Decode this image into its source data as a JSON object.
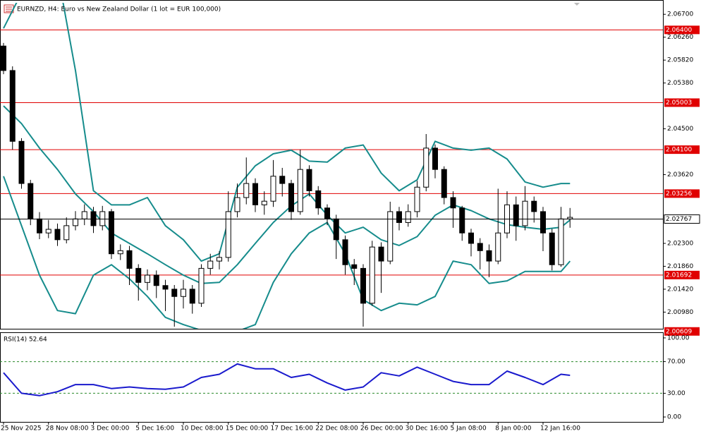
{
  "chart_data": [
    {
      "type": "candlestick",
      "title": "EURNZD, H4:  Euro vs New Zealand Dollar (1 lot = EUR 100,000)",
      "categories": [
        "25 Nov 2025",
        null,
        null,
        null,
        null,
        "28 Nov 08:00",
        null,
        null,
        null,
        null,
        "3 Dec 00:00",
        null,
        null,
        null,
        null,
        "5 Dec 16:00",
        null,
        null,
        null,
        null,
        "10 Dec 08:00",
        null,
        null,
        null,
        null,
        "15 Dec 00:00",
        null,
        null,
        null,
        null,
        "17 Dec 16:00",
        null,
        null,
        null,
        null,
        "22 Dec 08:00",
        null,
        null,
        null,
        null,
        "26 Dec 00:00",
        null,
        null,
        null,
        null,
        "30 Dec 16:00",
        null,
        null,
        null,
        null,
        "5 Jan 08:00",
        null,
        null,
        null,
        null,
        "8 Jan 00:00",
        null,
        null,
        null,
        null,
        "12 Jan 16:00",
        null,
        null,
        null
      ],
      "open": [
        2.0609,
        2.0562,
        2.0426,
        2.0345,
        2.0277,
        2.025,
        2.0257,
        2.0237,
        2.0264,
        2.0277,
        2.0291,
        2.0264,
        2.0291,
        2.021,
        2.0216,
        2.0182,
        2.0155,
        2.0169,
        2.0149,
        2.0142,
        2.0128,
        2.0142,
        2.0115,
        2.0182,
        2.0196,
        2.0203,
        2.0291,
        2.0318,
        2.0345,
        2.0304,
        2.0311,
        2.0359,
        2.0345,
        2.0291,
        2.0372,
        2.0331,
        2.0298,
        2.0277,
        2.0237,
        2.0189,
        2.0182,
        2.0115,
        2.0223,
        2.0196,
        2.0291,
        2.027,
        2.0291,
        2.0338,
        2.0413,
        2.0372,
        2.0318,
        2.0298,
        2.025,
        2.023,
        2.0216,
        2.0196,
        2.025,
        2.0304,
        2.0264,
        2.0311,
        2.0291,
        2.025,
        2.0189,
        2.0277
      ],
      "high": [
        2.0615,
        2.057,
        2.0432,
        2.0352,
        2.029,
        2.0275,
        2.0268,
        2.028,
        2.0292,
        2.0305,
        2.03,
        2.0302,
        2.0296,
        2.0228,
        2.0225,
        2.019,
        2.018,
        2.0178,
        2.016,
        2.015,
        2.016,
        2.015,
        2.019,
        2.021,
        2.0215,
        2.033,
        2.0345,
        2.0395,
        2.0355,
        2.033,
        2.039,
        2.0375,
        2.0352,
        2.041,
        2.038,
        2.034,
        2.0305,
        2.0285,
        2.0245,
        2.02,
        2.019,
        2.0235,
        2.0232,
        2.031,
        2.03,
        2.0305,
        2.035,
        2.044,
        2.042,
        2.0378,
        2.033,
        2.0302,
        2.0258,
        2.024,
        2.0228,
        2.0335,
        2.033,
        2.032,
        2.034,
        2.032,
        2.03,
        2.0258,
        2.03,
        2.0298
      ],
      "low": [
        2.0555,
        2.041,
        2.0335,
        2.0265,
        2.0238,
        2.024,
        2.0225,
        2.023,
        2.0255,
        2.0265,
        2.025,
        2.0255,
        2.02,
        2.0198,
        2.015,
        2.012,
        2.014,
        2.0125,
        2.01,
        2.007,
        2.0105,
        2.0095,
        2.0108,
        2.017,
        2.018,
        2.0195,
        2.028,
        2.0305,
        2.029,
        2.0285,
        2.03,
        2.032,
        2.0275,
        2.0285,
        2.032,
        2.0285,
        2.0265,
        2.02,
        2.017,
        2.015,
        2.007,
        2.011,
        2.0135,
        2.019,
        2.0255,
        2.0262,
        2.028,
        2.033,
        2.0355,
        2.0305,
        2.026,
        2.0235,
        2.0205,
        2.018,
        2.0165,
        2.019,
        2.024,
        2.0235,
        2.0255,
        2.027,
        2.0215,
        2.0178,
        2.0185,
        2.026
      ],
      "close": [
        2.0562,
        2.0426,
        2.0345,
        2.0277,
        2.025,
        2.0257,
        2.0237,
        2.0264,
        2.0277,
        2.0291,
        2.0264,
        2.0291,
        2.021,
        2.0216,
        2.0182,
        2.0155,
        2.0169,
        2.0149,
        2.0142,
        2.0128,
        2.0142,
        2.0115,
        2.0182,
        2.0196,
        2.0203,
        2.0291,
        2.0318,
        2.0345,
        2.0304,
        2.0311,
        2.0359,
        2.0345,
        2.0291,
        2.0372,
        2.0331,
        2.0298,
        2.0277,
        2.0237,
        2.0189,
        2.0182,
        2.0115,
        2.0223,
        2.0196,
        2.0291,
        2.027,
        2.0291,
        2.0338,
        2.0413,
        2.0372,
        2.0318,
        2.0298,
        2.025,
        2.023,
        2.0216,
        2.0196,
        2.025,
        2.0304,
        2.0264,
        2.0311,
        2.0291,
        2.025,
        2.0189,
        2.0277,
        2.028
      ],
      "ylim": [
        2.0066,
        2.0692
      ],
      "yticks": [
        {
          "value": 2.067,
          "label": "2.06700"
        },
        {
          "value": 2.0626,
          "label": "2.06260"
        },
        {
          "value": 2.0582,
          "label": "2.05820"
        },
        {
          "value": 2.0538,
          "label": "2.05380"
        },
        {
          "value": 2.045,
          "label": "2.04500"
        },
        {
          "value": 2.0362,
          "label": "2.03620"
        },
        {
          "value": 2.023,
          "label": "2.02300"
        },
        {
          "value": 2.0186,
          "label": "2.01860"
        },
        {
          "value": 2.0142,
          "label": "2.01420"
        },
        {
          "value": 2.0098,
          "label": "2.00980"
        }
      ],
      "levels": [
        {
          "value": 2.064,
          "label": "2.06400"
        },
        {
          "value": 2.05003,
          "label": "2.05003"
        },
        {
          "value": 2.041,
          "label": "2.04100"
        },
        {
          "value": 2.03256,
          "label": "2.03256"
        },
        {
          "value": 2.01692,
          "label": "2.01692"
        },
        {
          "value": 2.00609,
          "label": "2.00609"
        }
      ],
      "level_color": "#e00000",
      "current_price": {
        "value": 2.02767,
        "label": "2.02767"
      },
      "bands": {
        "color": "#168c8c",
        "x": [
          0,
          2,
          4,
          6,
          8,
          10,
          12,
          14,
          16,
          18,
          20,
          22,
          24,
          26,
          28,
          30,
          32,
          34,
          36,
          38,
          40,
          42,
          44,
          46,
          48,
          50,
          52,
          54,
          56,
          58,
          60,
          62,
          63
        ],
        "series": [
          {
            "values": [
              2.0643,
              2.0711,
              2.0751,
              2.0751,
              2.0562,
              2.0331,
              2.0304,
              2.0304,
              2.0318,
              2.0264,
              2.0237,
              2.0196,
              2.021,
              2.0338,
              2.0379,
              2.0402,
              2.0409,
              2.0388,
              2.0386,
              2.0413,
              2.0419,
              2.0365,
              2.0331,
              2.0352,
              2.0426,
              2.0413,
              2.0409,
              2.0413,
              2.0392,
              2.0348,
              2.0338,
              2.0345,
              2.0345
            ]
          },
          {
            "values": [
              2.0494,
              2.046,
              2.0413,
              2.0372,
              2.0325,
              2.0291,
              2.025,
              2.023,
              2.021,
              2.0189,
              2.0169,
              2.0153,
              2.0155,
              2.0189,
              2.023,
              2.027,
              2.0302,
              2.0325,
              2.0284,
              2.025,
              2.0261,
              2.0237,
              2.0226,
              2.0243,
              2.0284,
              2.0304,
              2.0293,
              2.0277,
              2.0266,
              2.0261,
              2.0257,
              2.0261,
              2.0275
            ]
          },
          {
            "values": [
              2.0359,
              2.0264,
              2.0169,
              2.0101,
              2.0095,
              2.0169,
              2.0189,
              2.0162,
              2.0128,
              2.0088,
              2.0074,
              2.0063,
              2.0054,
              2.0061,
              2.0074,
              2.0155,
              2.021,
              2.025,
              2.027,
              2.021,
              2.0122,
              2.0101,
              2.0115,
              2.0112,
              2.0128,
              2.0196,
              2.0189,
              2.0153,
              2.0158,
              2.0176,
              2.0176,
              2.0176,
              2.0196
            ]
          }
        ]
      }
    },
    {
      "type": "line",
      "title": "RSI(14) 52.64",
      "x": [
        0,
        2,
        4,
        6,
        8,
        10,
        12,
        14,
        16,
        18,
        20,
        22,
        24,
        26,
        28,
        30,
        32,
        34,
        36,
        38,
        40,
        42,
        44,
        46,
        48,
        50,
        52,
        54,
        56,
        58,
        60,
        62,
        63
      ],
      "values": [
        56,
        30,
        27,
        32,
        41,
        41,
        36,
        38,
        36,
        35,
        38,
        50,
        54,
        67,
        61,
        61,
        50,
        54,
        43,
        34,
        38,
        56,
        52,
        63,
        54,
        45,
        41,
        41,
        58,
        50,
        41,
        54,
        52.64
      ],
      "color": "#1a1acd",
      "ylim": [
        -6.2,
        106.2
      ],
      "yticks": [
        {
          "value": 100,
          "label": "100.00"
        },
        {
          "value": 70,
          "label": "70.00"
        },
        {
          "value": 30,
          "label": "30.00"
        },
        {
          "value": 0,
          "label": "0.00"
        }
      ],
      "guide_lines": [
        70,
        30
      ]
    }
  ]
}
